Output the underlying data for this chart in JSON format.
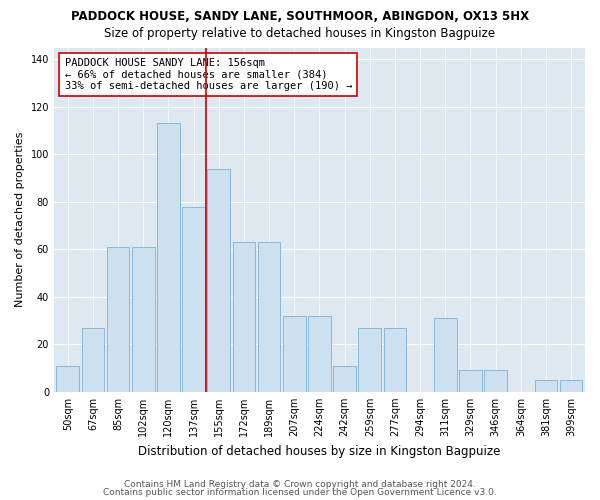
{
  "title": "PADDOCK HOUSE, SANDY LANE, SOUTHMOOR, ABINGDON, OX13 5HX",
  "subtitle": "Size of property relative to detached houses in Kingston Bagpuize",
  "xlabel": "Distribution of detached houses by size in Kingston Bagpuize",
  "ylabel": "Number of detached properties",
  "categories": [
    "50sqm",
    "67sqm",
    "85sqm",
    "102sqm",
    "120sqm",
    "137sqm",
    "155sqm",
    "172sqm",
    "189sqm",
    "207sqm",
    "224sqm",
    "242sqm",
    "259sqm",
    "277sqm",
    "294sqm",
    "311sqm",
    "329sqm",
    "346sqm",
    "364sqm",
    "381sqm",
    "399sqm"
  ],
  "values": [
    11,
    27,
    61,
    61,
    113,
    78,
    94,
    63,
    63,
    32,
    32,
    11,
    27,
    27,
    0,
    31,
    9,
    9,
    0,
    5,
    5
  ],
  "bar_color": "#cce0f0",
  "bar_edge_color": "#8ab8d8",
  "vline_color": "#cc0000",
  "annotation_line1": "PADDOCK HOUSE SANDY LANE: 156sqm",
  "annotation_line2": "← 66% of detached houses are smaller (384)",
  "annotation_line3": "33% of semi-detached houses are larger (190) →",
  "annotation_box_color": "#ffffff",
  "annotation_box_edge": "#cc0000",
  "ylim": [
    0,
    145
  ],
  "yticks": [
    0,
    20,
    40,
    60,
    80,
    100,
    120,
    140
  ],
  "bg_color": "#dde8f0",
  "fig_bg_color": "#ffffff",
  "footer1": "Contains HM Land Registry data © Crown copyright and database right 2024.",
  "footer2": "Contains public sector information licensed under the Open Government Licence v3.0.",
  "title_fontsize": 8.5,
  "subtitle_fontsize": 8.5,
  "xlabel_fontsize": 8.5,
  "ylabel_fontsize": 8,
  "tick_fontsize": 7,
  "footer_fontsize": 6.5,
  "annotation_fontsize": 7.5
}
